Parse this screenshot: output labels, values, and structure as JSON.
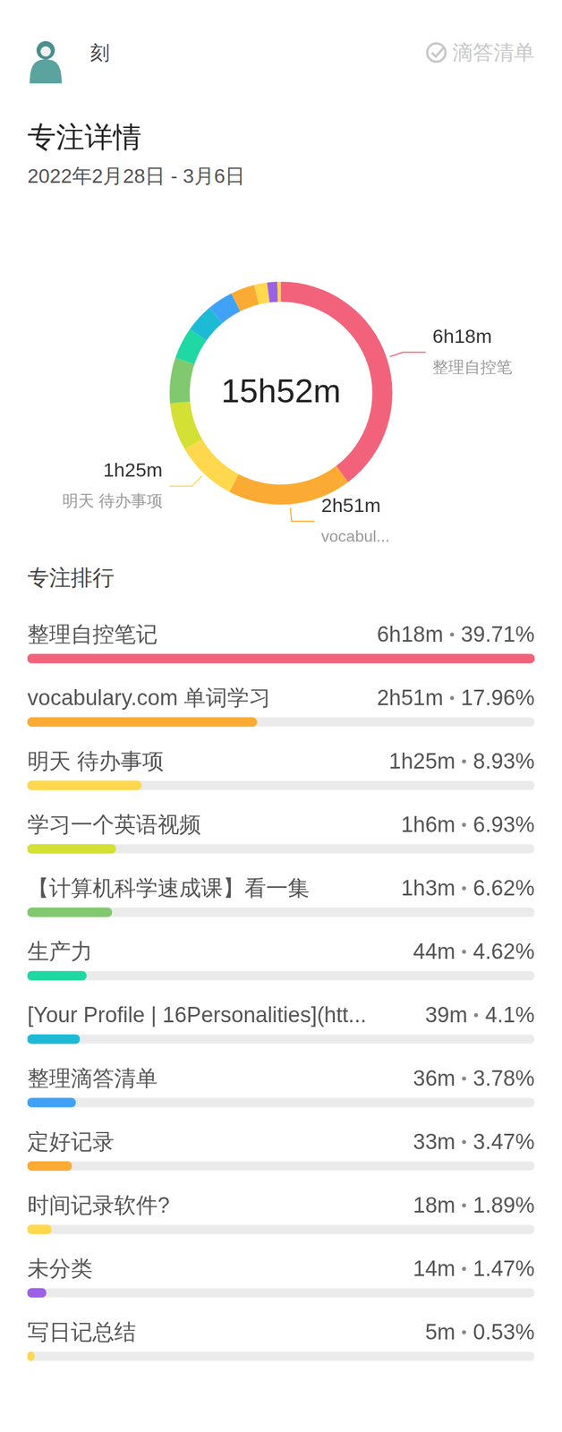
{
  "header": {
    "user": "刻",
    "app": "滴答清单"
  },
  "chart_data": {
    "type": "doughnut",
    "title": "专注详情",
    "subtitle": "2022年2月28日 - 3月6日",
    "center_label": "15h52m",
    "ranking_title": "专注排行",
    "categories": [
      "整理自控笔记",
      "vocabulary.com 单词学习",
      "明天 待办事项",
      "学习一个英语视频",
      "【计算机科学速成课】看一集",
      "生产力",
      "[Your Profile | 16Personalities](htt...",
      "整理滴答清单",
      " 定好记录",
      "时间记录软件?",
      "未分类",
      "写日记总结"
    ],
    "values": [
      378,
      171,
      85,
      66,
      63,
      44,
      39,
      36,
      33,
      18,
      14,
      5
    ],
    "value_labels": [
      "6h18m",
      "2h51m",
      "1h25m",
      "1h6m",
      "1h3m",
      "44m",
      "39m",
      "36m",
      "33m",
      "18m",
      "14m",
      "5m"
    ],
    "percentages": [
      39.71,
      17.96,
      8.93,
      6.93,
      6.62,
      4.62,
      4.1,
      3.78,
      3.47,
      1.89,
      1.47,
      0.53
    ],
    "percent_labels": [
      "39.71%",
      "17.96%",
      "8.93%",
      "6.93%",
      "6.62%",
      "4.62%",
      "4.1%",
      "3.78%",
      "3.47%",
      "1.89%",
      "1.47%",
      "0.53%"
    ],
    "colors": [
      "#f2637b",
      "#fbab33",
      "#ffd84d",
      "#d4e034",
      "#80c96e",
      "#1fd8a3",
      "#1dbad6",
      "#3fa2f7",
      "#fbab33",
      "#ffd84d",
      "#9b62e6",
      "#ffd84d"
    ],
    "annotations": [
      {
        "value_label": "6h18m",
        "label": "整理自控笔"
      },
      {
        "value_label": "2h51m",
        "label": "vocabul..."
      },
      {
        "value_label": "1h25m",
        "label": "明天 待办事项"
      }
    ],
    "legend": false
  }
}
